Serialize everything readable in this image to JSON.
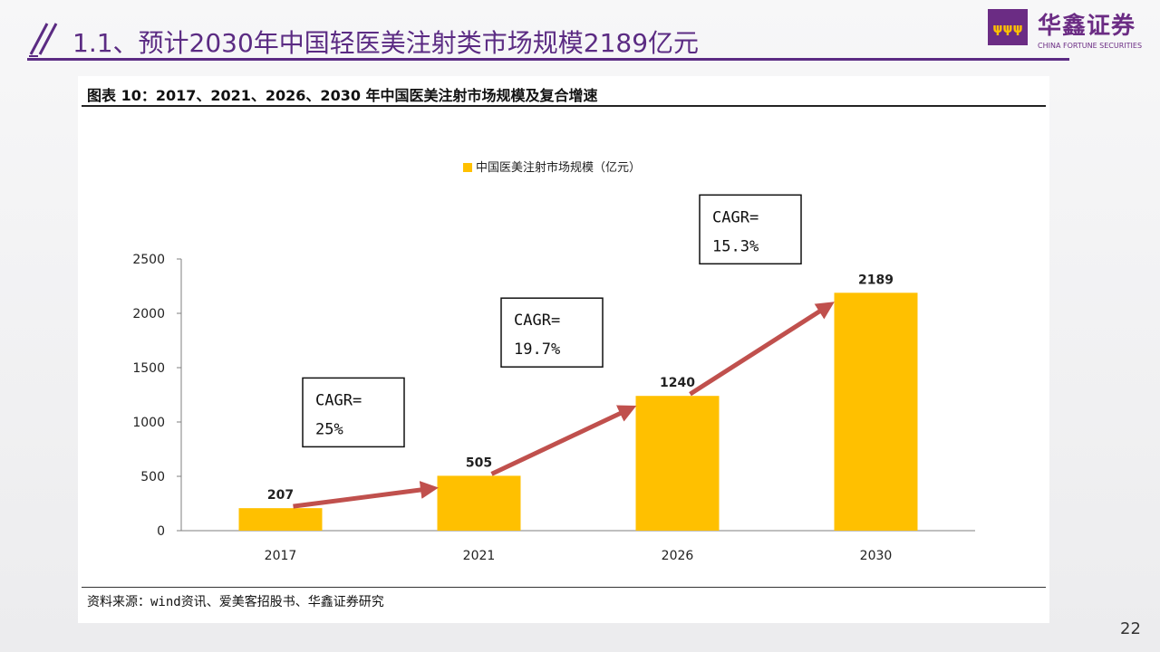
{
  "header": {
    "title": "1.1、预计2030年中国轻医美注射类市场规模2189亿元",
    "logo_name": "华鑫证券",
    "logo_en": "CHINA FORTUNE SECURITIES"
  },
  "figure": {
    "title": "图表 10：2017、2021、2026、2030 年中国医美注射市场规模及复合增速",
    "source": "资料来源：wind资讯、爱美客招股书、华鑫证券研究"
  },
  "chart_data": {
    "type": "bar",
    "categories": [
      "2017",
      "2021",
      "2026",
      "2030"
    ],
    "series": [
      {
        "name": "中国医美注射市场规模（亿元）",
        "values": [
          207,
          505,
          1240,
          2189
        ]
      }
    ],
    "ylim": [
      0,
      2500
    ],
    "yticks": [
      0,
      500,
      1000,
      1500,
      2000,
      2500
    ],
    "legend": "中国医美注射市场规模（亿元）",
    "bar_color": "#ffc000",
    "arrow_color": "#c0504d",
    "annotations": [
      {
        "label": "CAGR=",
        "value": "25%"
      },
      {
        "label": "CAGR=",
        "value": "19.7%"
      },
      {
        "label": "CAGR=",
        "value": "15.3%"
      }
    ]
  },
  "page_number": "22"
}
